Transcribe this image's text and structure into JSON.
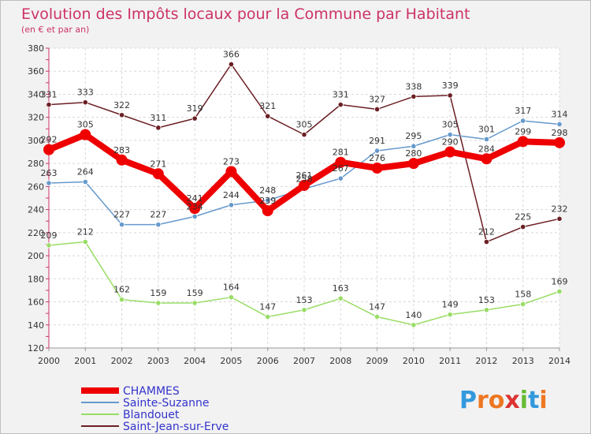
{
  "chart_data": {
    "type": "line",
    "title": "Evolution des Impôts locaux pour la Commune par Habitant",
    "subtitle": "(en € et par an)",
    "xlabel": "",
    "ylabel": "",
    "ylim": [
      120,
      380
    ],
    "yticks": [
      120,
      140,
      160,
      180,
      200,
      220,
      240,
      260,
      280,
      300,
      320,
      340,
      360,
      380
    ],
    "x": [
      "2000",
      "2001",
      "2002",
      "2003",
      "2004",
      "2005",
      "2006",
      "2007",
      "2008",
      "2009",
      "2010",
      "2011",
      "2012",
      "2013",
      "2014"
    ],
    "grid": true,
    "legend_position": "bottom-left",
    "series": [
      {
        "name": "Saint-Jean-sur-Erve",
        "color": "#6b1f24",
        "values": [
          331,
          333,
          322,
          311,
          319,
          366,
          321,
          305,
          331,
          327,
          338,
          339,
          212,
          225,
          232
        ]
      },
      {
        "name": "Blandouet",
        "color": "#99dd66",
        "values": [
          209,
          212,
          162,
          159,
          159,
          164,
          147,
          153,
          163,
          147,
          140,
          149,
          153,
          158,
          169
        ]
      },
      {
        "name": "Sainte-Suzanne",
        "color": "#6699cc",
        "values": [
          263,
          264,
          227,
          227,
          234,
          244,
          248,
          258,
          267,
          291,
          295,
          305,
          301,
          317,
          314
        ]
      },
      {
        "name": "CHAMMES",
        "color": "#ee0000",
        "values": [
          292,
          305,
          283,
          271,
          241,
          273,
          239,
          261,
          281,
          276,
          280,
          290,
          284,
          299,
          298
        ]
      }
    ],
    "legend_order": [
      "CHAMMES",
      "Sainte-Suzanne",
      "Blandouet",
      "Saint-Jean-sur-Erve"
    ]
  },
  "brand": {
    "letters": [
      "P",
      "r",
      "o",
      "x",
      "i",
      "t",
      "i"
    ],
    "colors": [
      "#3399dd",
      "#ee7722",
      "#ee7722",
      "#dd3333",
      "#66bb33",
      "#3399dd",
      "#ee7722"
    ]
  }
}
